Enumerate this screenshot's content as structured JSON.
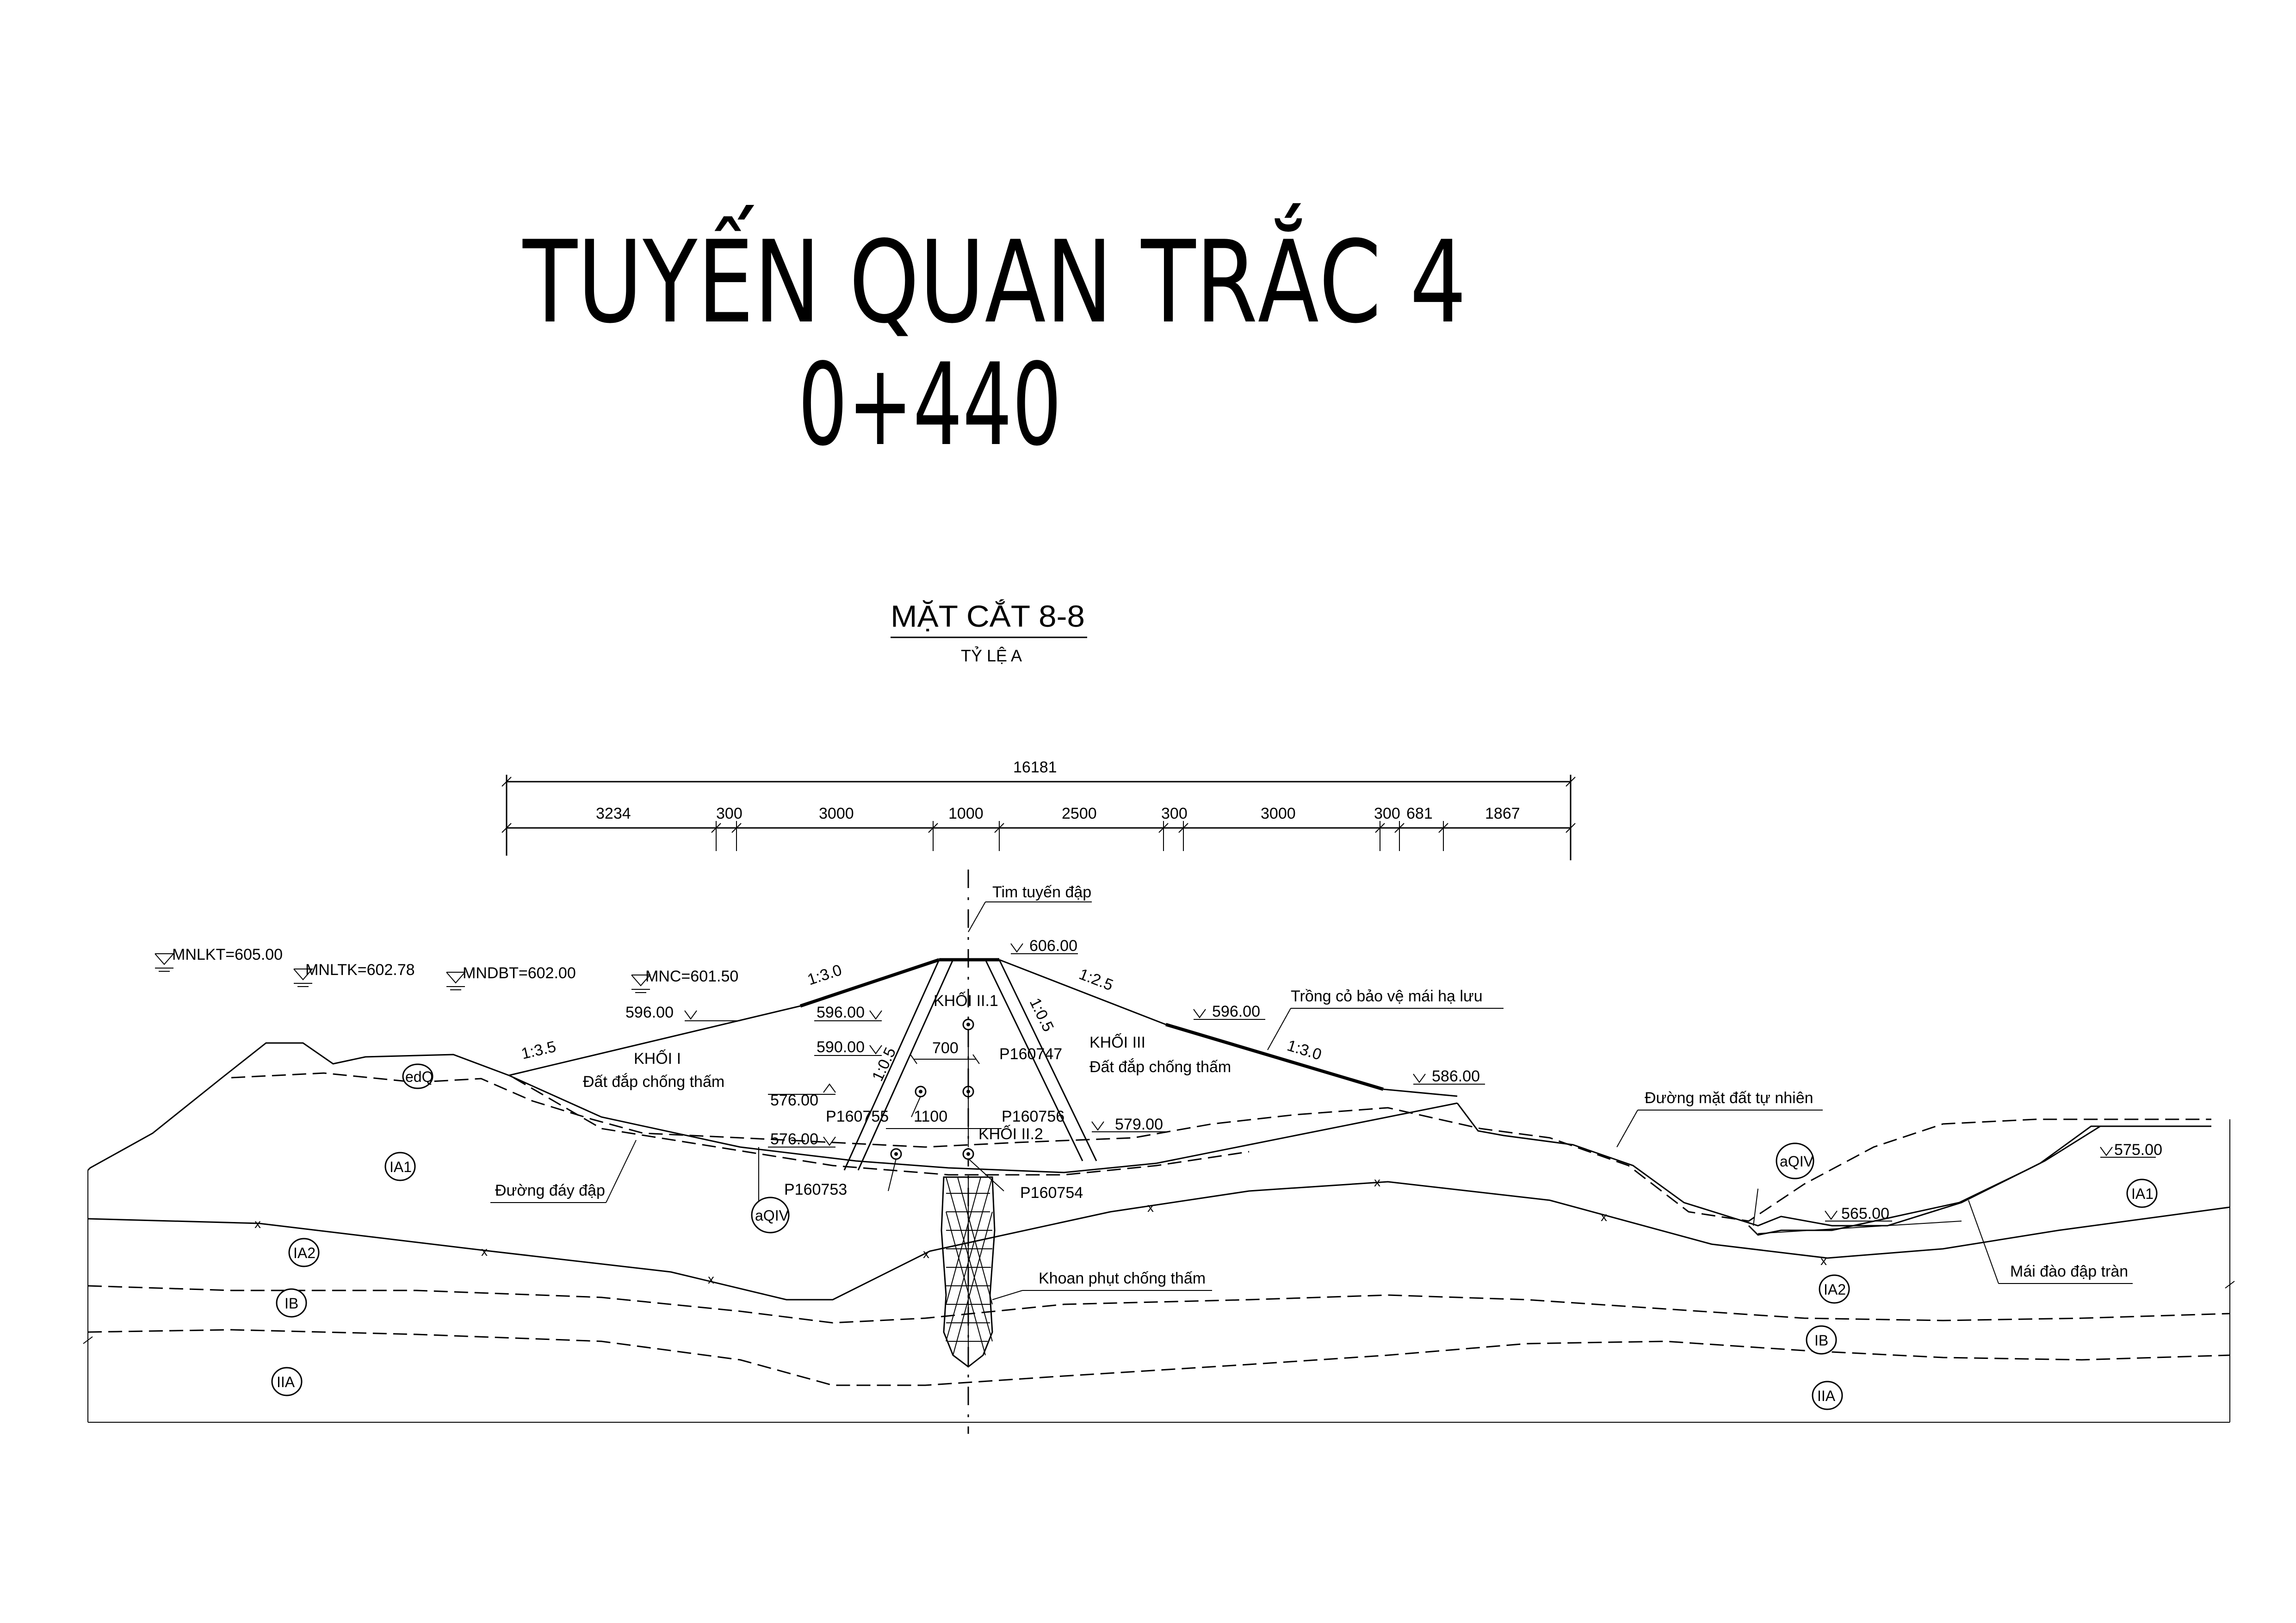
{
  "title": {
    "line1": "TUYẾN QUAN TRẮC 4",
    "line2": "0+440"
  },
  "section": {
    "name": "MẶT CẮT 8-8",
    "scale": "TỶ LỆ A"
  },
  "dimensions": {
    "total": "16181",
    "segments": [
      "3234",
      "300",
      "3000",
      "1000",
      "2500",
      "300",
      "3000",
      "300",
      "681",
      "1867"
    ]
  },
  "water_levels": {
    "mnlkt": "MNLKT=605.00",
    "mnltk": "MNLTK=602.78",
    "mndbt": "MNDBT=602.00",
    "mnc": "MNC=601.50"
  },
  "elevations": {
    "crest": "606.00",
    "upstream_596": "596.00",
    "core_596": "596.00",
    "downstream_596": "596.00",
    "core_590": "590.00",
    "core_576_up": "576.00",
    "core_576_low": "576.00",
    "downstream_579": "579.00",
    "berm_586": "586.00",
    "right_575": "575.00",
    "spillway_565": "565.00"
  },
  "slopes": {
    "up_upper": "1:3.0",
    "up_lower": "1:3.5",
    "core_left": "1:0.5",
    "core_right": "1:0.5",
    "down_upper": "1:2.5",
    "down_lower": "1:3.0"
  },
  "zones": {
    "khoi1_name": "KHỐI I",
    "khoi1_desc": "Đất đắp chống thấm",
    "khoi21": "KHỐI II.1",
    "khoi22": "KHỐI II.2",
    "khoi3_name": "KHỐI III",
    "khoi3_desc": "Đất đắp chống thấm"
  },
  "core_dims": {
    "w700": "700",
    "w1100": "1100"
  },
  "piezometers": {
    "p747": "P160747",
    "p756": "P160756",
    "p755": "P160755",
    "p753": "P160753",
    "p754": "P160754"
  },
  "annotations": {
    "axis": "Tim tuyến đập",
    "grass": "Trồng cỏ bảo vệ mái hạ lưu",
    "ground": "Đường mặt đất tự nhiên",
    "dam_bottom": "Đường đáy đập",
    "grout": "Khoan phụt chống thấm",
    "spillway": "Mái đào đập tràn"
  },
  "geology": {
    "edq": "edQ",
    "ia1_left": "IA1",
    "ia2_left": "IA2",
    "ib_left": "IB",
    "iia_left": "IIA",
    "aqiv_left": "aQIV",
    "aqiv_right": "aQIV",
    "ia1_right": "IA1",
    "ia2_right": "IA2",
    "ib_right": "IB",
    "iia_right": "IIA"
  }
}
